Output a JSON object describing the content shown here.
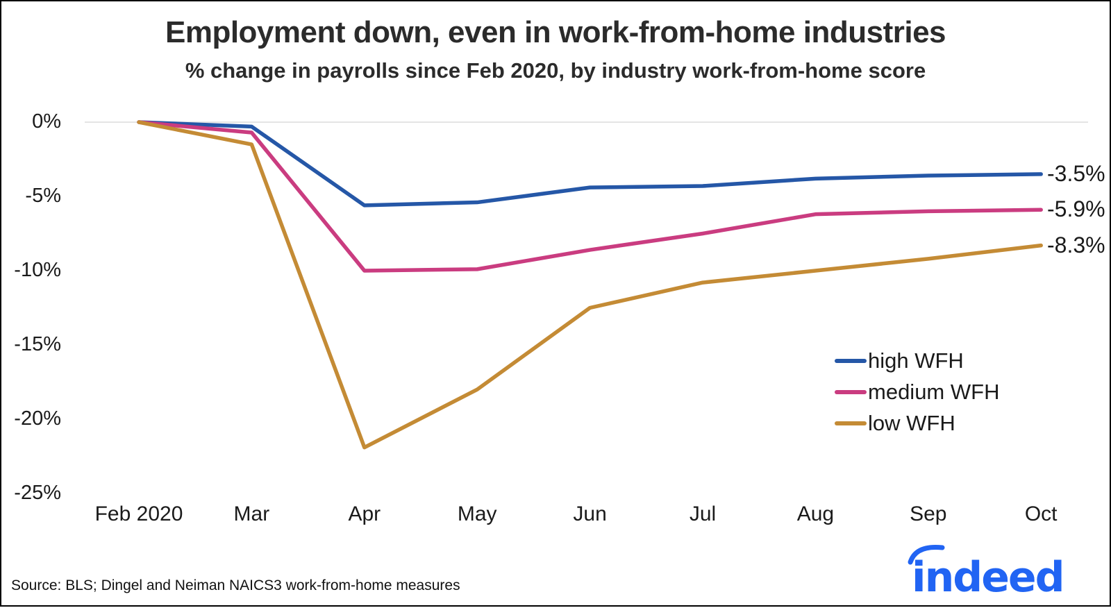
{
  "title": "Employment down, even in work-from-home industries",
  "subtitle": "% change in payrolls since Feb 2020, by industry work-from-home score",
  "source": "Source: BLS; Dingel and Neiman NAICS3 work-from-home measures",
  "logo_text": "indeed",
  "colors": {
    "high_wfh": "#2557a7",
    "medium_wfh": "#ca3c80",
    "low_wfh": "#c48b35",
    "gridline": "#e4e4e4",
    "text": "#1a1a1a",
    "logo_blue": "#2164f3"
  },
  "chart_data": {
    "type": "line",
    "x": [
      "Feb 2020",
      "Mar",
      "Apr",
      "May",
      "Jun",
      "Jul",
      "Aug",
      "Sep",
      "Oct"
    ],
    "series": [
      {
        "name": "high WFH",
        "color": "#2557a7",
        "values": [
          0,
          -0.3,
          -5.6,
          -5.4,
          -4.4,
          -4.3,
          -3.8,
          -3.6,
          -3.5
        ],
        "end_label": "-3.5%"
      },
      {
        "name": "medium WFH",
        "color": "#ca3c80",
        "values": [
          0,
          -0.7,
          -10.0,
          -9.9,
          -8.6,
          -7.5,
          -6.2,
          -6.0,
          -5.9
        ],
        "end_label": "-5.9%"
      },
      {
        "name": "low WFH",
        "color": "#c48b35",
        "values": [
          0,
          -1.5,
          -21.9,
          -18.0,
          -12.5,
          -10.8,
          -10.0,
          -9.2,
          -8.3
        ],
        "end_label": "-8.3%"
      }
    ],
    "yticks": [
      "0%",
      "-5%",
      "-10%",
      "-15%",
      "-20%",
      "-25%"
    ],
    "ytick_values": [
      0,
      -5,
      -10,
      -15,
      -20,
      -25
    ],
    "ylim": [
      -25,
      0
    ],
    "grid": "horizontal line at 0% only",
    "legend_position": "center-right"
  }
}
